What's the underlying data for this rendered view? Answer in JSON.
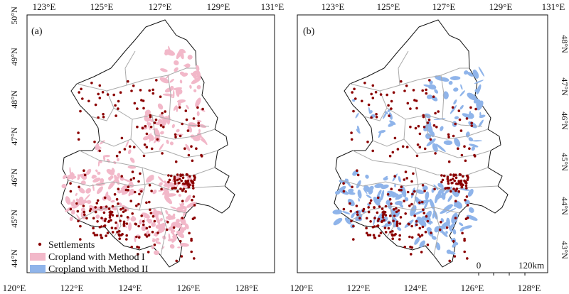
{
  "panels": [
    {
      "label": "(a)",
      "top_ticks": [
        "123°E",
        "125°E",
        "127°E",
        "129°E",
        "131°E"
      ],
      "bottom_ticks": [
        "120°E",
        "122°E",
        "124°E",
        "126°E",
        "128°E"
      ],
      "left_ticks": [
        "50°N",
        "49°N",
        "48°N",
        "47°N",
        "46°N",
        "45°N",
        "44°N"
      ],
      "cropland_color": "#f2b8c9"
    },
    {
      "label": "(b)",
      "top_ticks": [
        "123°E",
        "125°E",
        "127°E",
        "129°E",
        "131°E"
      ],
      "bottom_ticks": [
        "120°E",
        "122°E",
        "124°E",
        "126°E",
        "128°E"
      ],
      "right_ticks": [
        "48°N",
        "47°N",
        "46°N",
        "45°N",
        "44°N",
        "43°N"
      ],
      "cropland_color": "#8fb4ea"
    }
  ],
  "legend": {
    "items": [
      {
        "label": "Settlements",
        "color": "#8b0000",
        "kind": "dot"
      },
      {
        "label": "Cropland with Method I",
        "color": "#f2b8c9",
        "kind": "swatch"
      },
      {
        "label": "Cropland with Method II",
        "color": "#8fb4ea",
        "kind": "swatch"
      }
    ]
  },
  "scale_bar": {
    "start": "0",
    "end": "120km"
  },
  "colors": {
    "settlement": "#8b0000",
    "boundary": "#111111",
    "county_line": "#aaaaaa"
  }
}
